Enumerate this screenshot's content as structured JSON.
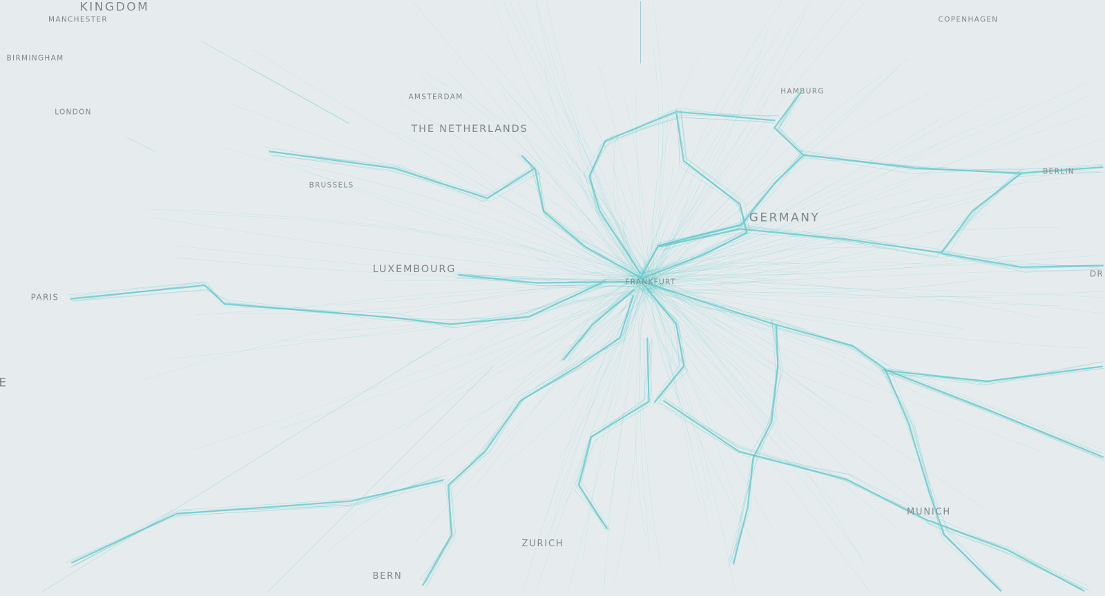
{
  "map": {
    "background_color": "#e6ecee",
    "route_color": "#5cc8c8",
    "label_color": "#7f8789",
    "hub": "Frankfurt",
    "labels": {
      "kingdom": "KINGDOM",
      "manchester": "MANCHESTER",
      "birmingham": "BIRMINGHAM",
      "london": "LONDON",
      "copenhagen": "COPENHAGEN",
      "hamburg": "HAMBURG",
      "amsterdam": "AMSTERDAM",
      "netherlands": "THE NETHERLANDS",
      "brussels": "BRUSSELS",
      "berlin": "BERLIN",
      "germany": "GERMANY",
      "luxembourg": "LUXEMBOURG",
      "frankfurt": "FRANKFURT",
      "paris": "PARIS",
      "france_partial": "E",
      "dresden_partial": "DR",
      "munich": "MUNICH",
      "zurich": "ZURICH",
      "bern": "BERN"
    }
  }
}
